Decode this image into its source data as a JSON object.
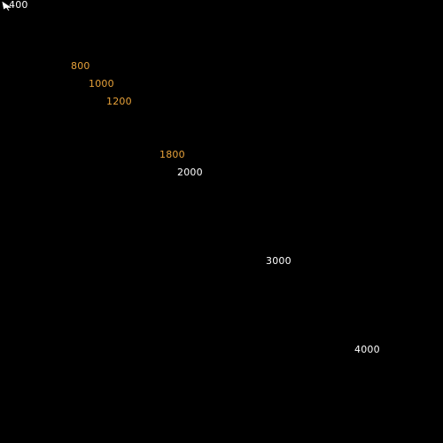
{
  "labels": [
    {
      "text": "400",
      "color": "#ffffff"
    },
    {
      "text": "800",
      "color": "#e8a23a"
    },
    {
      "text": "1000",
      "color": "#e8a23a"
    },
    {
      "text": "1200",
      "color": "#e8a23a"
    },
    {
      "text": "1800",
      "color": "#e8a23a"
    },
    {
      "text": "2000",
      "color": "#ffffff"
    },
    {
      "text": "3000",
      "color": "#ffffff"
    },
    {
      "text": "4000",
      "color": "#ffffff"
    }
  ],
  "cursor": {
    "icon": "mouse-pointer-icon"
  },
  "colors": {
    "background": "#000000",
    "highlight": "#e8a23a",
    "default": "#ffffff"
  }
}
